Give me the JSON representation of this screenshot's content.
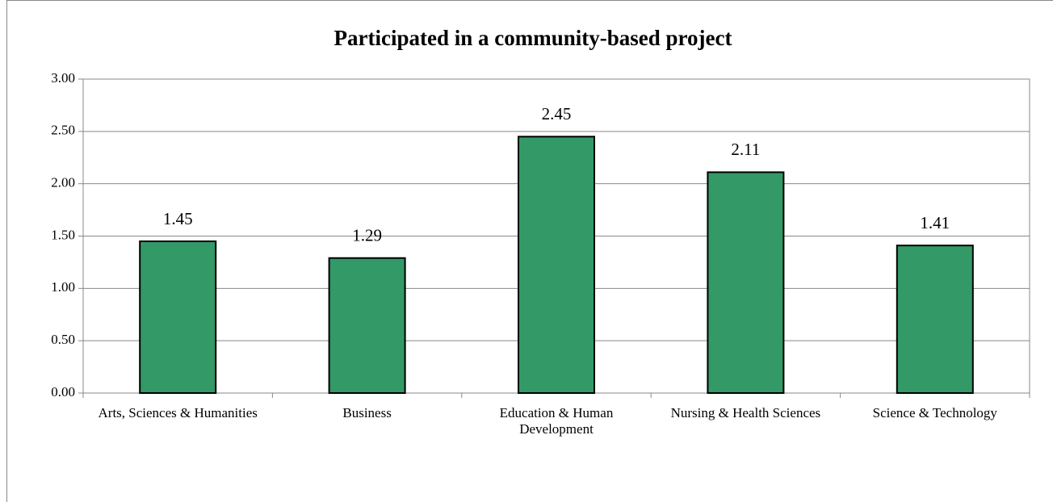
{
  "chart_data": {
    "type": "bar",
    "title": "Participated in a community-based project",
    "categories": [
      "Arts, Sciences & Humanities",
      "Business",
      "Education & Human Development",
      "Nursing & Health Sciences",
      "Science & Technology"
    ],
    "values": [
      1.45,
      1.29,
      2.45,
      2.11,
      1.41
    ],
    "color": "#339966",
    "ylim": [
      0,
      3
    ],
    "yticks": [
      {
        "value": 0,
        "label": "0.00"
      },
      {
        "value": 0.5,
        "label": "0.50"
      },
      {
        "value": 1,
        "label": "1.00"
      },
      {
        "value": 1.5,
        "label": "1.50"
      },
      {
        "value": 2,
        "label": "2.00"
      },
      {
        "value": 2.5,
        "label": "2.50"
      },
      {
        "value": 3,
        "label": "3.00"
      }
    ],
    "grid": true
  }
}
